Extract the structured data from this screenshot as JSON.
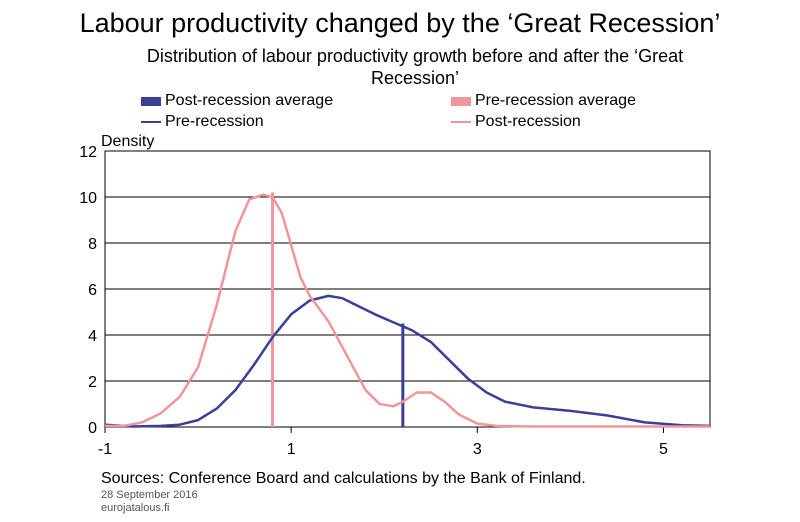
{
  "title": "Labour productivity changed by the ‘Great Recession’",
  "subtitle": "Distribution of labour productivity growth before and after the ‘Great Recession’",
  "legend": [
    {
      "label": "Post-recession average",
      "kind": "bar",
      "color": "#3b3f97"
    },
    {
      "label": "Pre-recession average",
      "kind": "bar",
      "color": "#f0969a"
    },
    {
      "label": "Pre-recession",
      "kind": "line",
      "color": "#3b3f97"
    },
    {
      "label": "Post-recession",
      "kind": "line",
      "color": "#f0969a"
    }
  ],
  "source": "Sources: Conference Board and calculations by the Bank of Finland.",
  "date": "28 September 2016",
  "site": "eurojatalous.fi",
  "chart_data": {
    "type": "line",
    "title": "Labour productivity changed by the ‘Great Recession’",
    "subtitle": "Distribution of labour productivity growth before and after the ‘Great Recession’",
    "ylabel": "Density",
    "xlim": [
      -1,
      5.5
    ],
    "ylim": [
      0,
      12
    ],
    "xticks": [
      -1,
      1,
      3,
      5
    ],
    "xtick_labels": [
      "-1",
      "1",
      "3",
      "5"
    ],
    "yticks": [
      0,
      2,
      4,
      6,
      8,
      10,
      12
    ],
    "ytick_labels": [
      "0",
      "2",
      "4",
      "6",
      "8",
      "10",
      "12"
    ],
    "grid": "horizontal",
    "legend_position": "top",
    "series": [
      {
        "name": "Pre-recession",
        "color": "#3b3f97",
        "x": [
          -1,
          -0.7,
          -0.4,
          -0.2,
          0.0,
          0.2,
          0.4,
          0.6,
          0.8,
          1.0,
          1.2,
          1.4,
          1.55,
          1.7,
          1.9,
          2.1,
          2.3,
          2.5,
          2.7,
          2.9,
          3.1,
          3.3,
          3.6,
          4.0,
          4.4,
          4.8,
          5.2,
          5.5
        ],
        "y": [
          0.1,
          0.02,
          0.05,
          0.1,
          0.3,
          0.8,
          1.6,
          2.7,
          3.9,
          4.9,
          5.5,
          5.7,
          5.6,
          5.3,
          4.9,
          4.55,
          4.2,
          3.7,
          2.9,
          2.1,
          1.5,
          1.1,
          0.85,
          0.7,
          0.5,
          0.2,
          0.08,
          0.05
        ]
      },
      {
        "name": "Post-recession",
        "color": "#f0969a",
        "x": [
          -1,
          -0.8,
          -0.6,
          -0.4,
          -0.2,
          0.0,
          0.2,
          0.4,
          0.55,
          0.7,
          0.8,
          0.9,
          1.0,
          1.1,
          1.2,
          1.4,
          1.6,
          1.8,
          1.95,
          2.1,
          2.2,
          2.35,
          2.5,
          2.65,
          2.8,
          3.0,
          3.2,
          3.6,
          4.0,
          5.5
        ],
        "y": [
          0.05,
          0.05,
          0.2,
          0.6,
          1.3,
          2.6,
          5.3,
          8.5,
          9.9,
          10.1,
          10.0,
          9.3,
          7.9,
          6.5,
          5.7,
          4.6,
          3.1,
          1.6,
          1.0,
          0.9,
          1.1,
          1.5,
          1.5,
          1.1,
          0.55,
          0.15,
          0.05,
          0.02,
          0.02,
          0.02
        ]
      }
    ],
    "averages": [
      {
        "name": "Post-recession average",
        "x": 2.2,
        "y": 4.5,
        "color": "#3b3f97"
      },
      {
        "name": "Pre-recession average",
        "x": 0.8,
        "y": 10.2,
        "color": "#f0969a"
      }
    ]
  }
}
